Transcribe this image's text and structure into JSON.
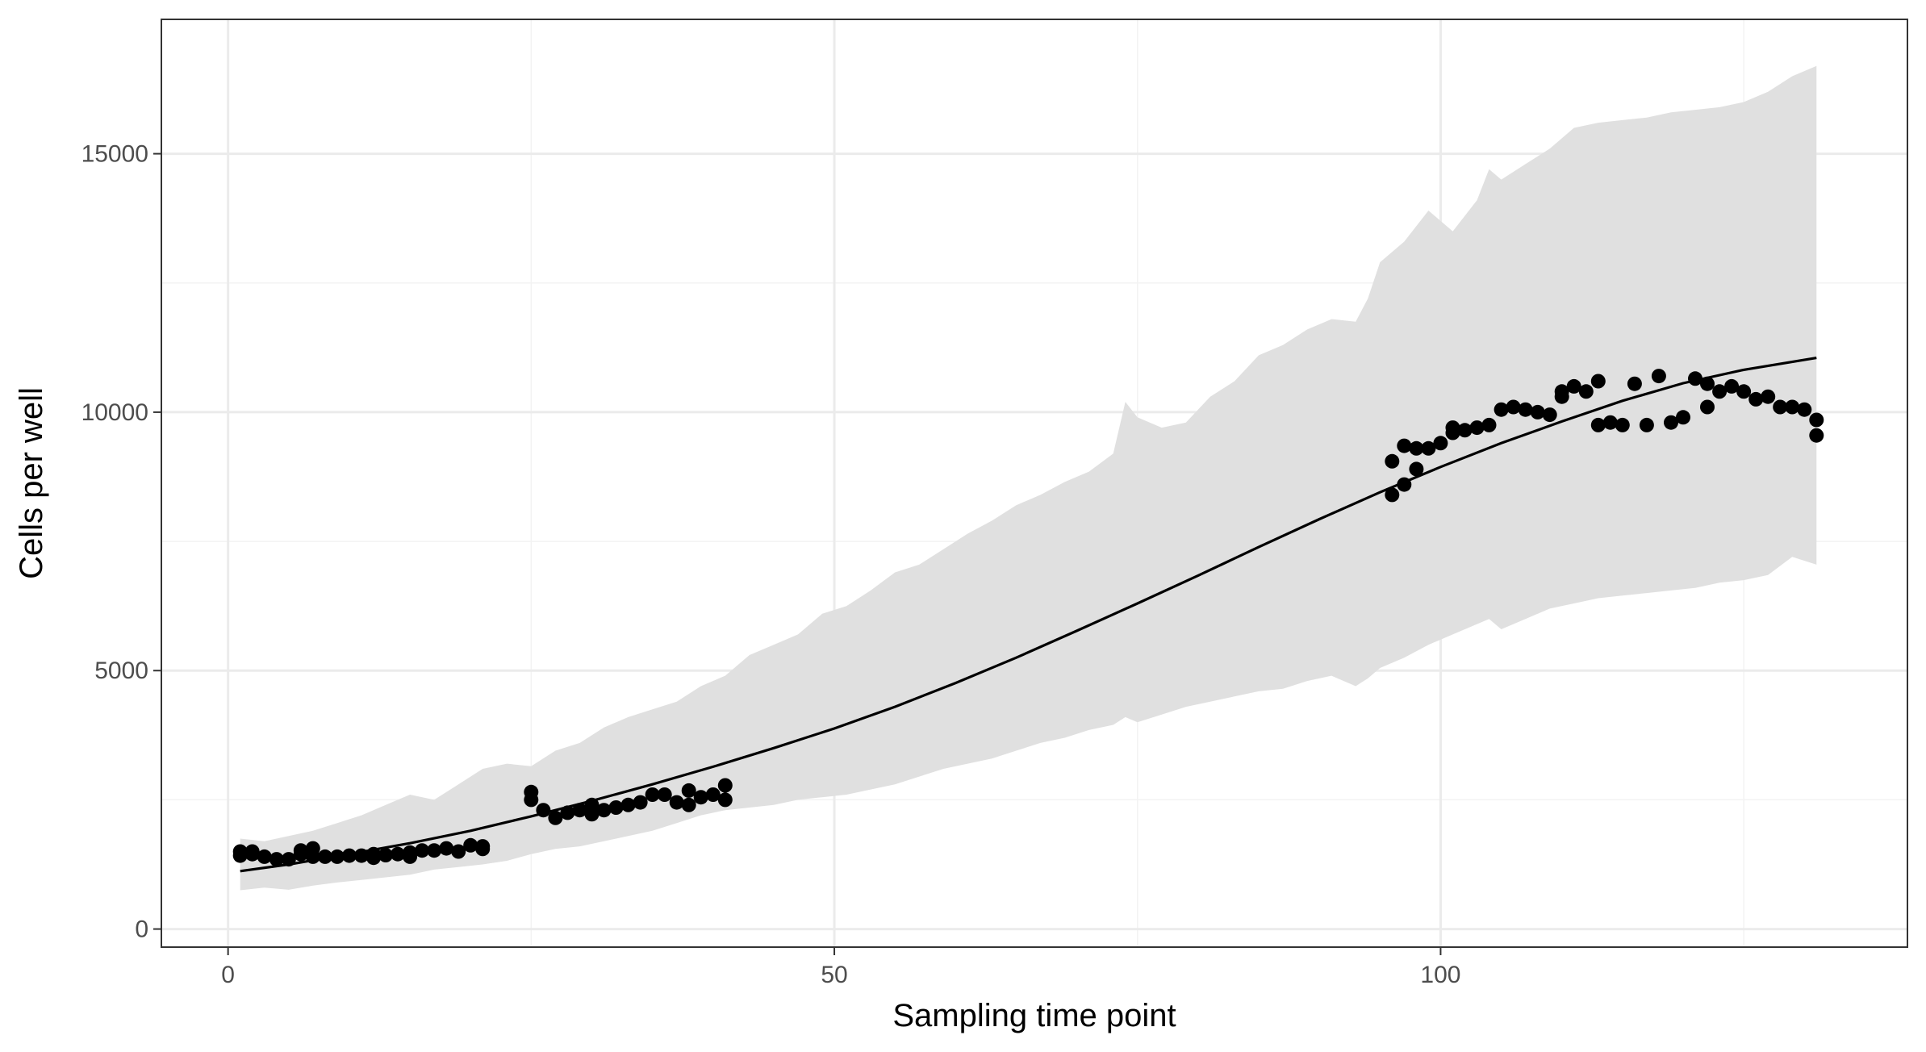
{
  "chart_data": {
    "type": "scatter",
    "title": "",
    "xlabel": "Sampling time point",
    "ylabel": "Cells per well",
    "xlim": [
      -5.5,
      138.5
    ],
    "ylim": [
      -350,
      17600
    ],
    "x_ticks": [
      0,
      50,
      100
    ],
    "x_tick_labels": [
      "0",
      "50",
      "100"
    ],
    "x_minor": [
      25,
      75,
      125
    ],
    "y_ticks": [
      0,
      5000,
      10000,
      15000
    ],
    "y_tick_labels": [
      "0",
      "5000",
      "10000",
      "15000"
    ],
    "y_minor": [
      2500,
      7500,
      12500
    ],
    "grid": true,
    "legend": "none",
    "colors": {
      "points": "#000000",
      "fit_line": "#000000",
      "band": "#e0e0e0",
      "panel_border": "#333333",
      "grid_major": "#ebebeb",
      "grid_minor": "#f3f3f3"
    },
    "series": [
      {
        "kind": "ribbon",
        "x": [
          1,
          3,
          5,
          7,
          9,
          11,
          13,
          15,
          17,
          19,
          21,
          23,
          25,
          27,
          29,
          31,
          33,
          35,
          37,
          39,
          41,
          43,
          45,
          47,
          49,
          51,
          53,
          55,
          57,
          59,
          61,
          63,
          65,
          67,
          69,
          71,
          73,
          74,
          75,
          77,
          79,
          81,
          83,
          85,
          87,
          89,
          91,
          93,
          94,
          95,
          97,
          99,
          101,
          103,
          104,
          105,
          107,
          109,
          111,
          113,
          115,
          117,
          119,
          121,
          123,
          125,
          127,
          129,
          131
        ],
        "upper": [
          1750,
          1700,
          1800,
          1900,
          2050,
          2200,
          2400,
          2600,
          2500,
          2800,
          3100,
          3200,
          3150,
          3450,
          3600,
          3900,
          4100,
          4250,
          4400,
          4700,
          4900,
          5300,
          5500,
          5700,
          6100,
          6250,
          6550,
          6900,
          7050,
          7350,
          7650,
          7900,
          8200,
          8400,
          8650,
          8850,
          9200,
          10200,
          9900,
          9700,
          9800,
          10300,
          10600,
          11100,
          11300,
          11600,
          11800,
          11750,
          12200,
          12900,
          13300,
          13900,
          13500,
          14100,
          14700,
          14500,
          14800,
          15100,
          15500,
          15600,
          15650,
          15700,
          15800,
          15850,
          15900,
          16000,
          16200,
          16500,
          16700
        ],
        "lower": [
          750,
          800,
          760,
          840,
          900,
          950,
          1000,
          1050,
          1150,
          1200,
          1250,
          1320,
          1450,
          1550,
          1600,
          1700,
          1800,
          1900,
          2050,
          2200,
          2300,
          2350,
          2400,
          2500,
          2550,
          2600,
          2700,
          2800,
          2950,
          3100,
          3200,
          3300,
          3450,
          3600,
          3700,
          3850,
          3950,
          4100,
          4000,
          4150,
          4300,
          4400,
          4500,
          4600,
          4650,
          4800,
          4900,
          4700,
          4850,
          5050,
          5250,
          5500,
          5700,
          5900,
          6000,
          5800,
          6000,
          6200,
          6300,
          6400,
          6450,
          6500,
          6550,
          6600,
          6700,
          6750,
          6850,
          7200,
          7050
        ]
      },
      {
        "kind": "line",
        "x": [
          1,
          5,
          10,
          15,
          20,
          25,
          30,
          35,
          40,
          45,
          50,
          55,
          60,
          65,
          70,
          75,
          80,
          85,
          90,
          95,
          100,
          105,
          110,
          115,
          120,
          125,
          131
        ],
        "y": [
          1120,
          1250,
          1450,
          1660,
          1900,
          2180,
          2480,
          2800,
          3140,
          3500,
          3880,
          4300,
          4760,
          5250,
          5770,
          6300,
          6840,
          7390,
          7930,
          8450,
          8940,
          9400,
          9820,
          10220,
          10560,
          10820,
          11050
        ]
      },
      {
        "kind": "points",
        "x": [
          1,
          1,
          2,
          2,
          3,
          4,
          5,
          6,
          6,
          7,
          7,
          8,
          9,
          10,
          11,
          12,
          12,
          13,
          14,
          15,
          15,
          16,
          17,
          18,
          19,
          20,
          21,
          21,
          25,
          25,
          26,
          27,
          28,
          29,
          30,
          30,
          31,
          32,
          33,
          34,
          35,
          36,
          37,
          38,
          38,
          39,
          40,
          41,
          41,
          96,
          96,
          97,
          97,
          98,
          98,
          99,
          100,
          101,
          101,
          102,
          103,
          104,
          105,
          106,
          107,
          108,
          109,
          110,
          110,
          111,
          112,
          113,
          113,
          114,
          115,
          116,
          117,
          118,
          119,
          120,
          121,
          122,
          122,
          123,
          124,
          125,
          126,
          127,
          128,
          129,
          130,
          131,
          131
        ],
        "y": [
          1420,
          1500,
          1450,
          1500,
          1400,
          1350,
          1350,
          1450,
          1520,
          1400,
          1560,
          1400,
          1400,
          1420,
          1420,
          1380,
          1450,
          1430,
          1450,
          1400,
          1480,
          1520,
          1520,
          1560,
          1500,
          1620,
          1550,
          1600,
          2500,
          2650,
          2300,
          2150,
          2250,
          2300,
          2220,
          2400,
          2300,
          2350,
          2400,
          2450,
          2600,
          2600,
          2450,
          2400,
          2680,
          2550,
          2600,
          2500,
          2780,
          8400,
          9050,
          8600,
          9350,
          8900,
          9300,
          9300,
          9400,
          9600,
          9700,
          9650,
          9700,
          9750,
          10050,
          10100,
          10050,
          10000,
          9950,
          10300,
          10400,
          10500,
          10400,
          9750,
          10600,
          9800,
          9750,
          10550,
          9750,
          10700,
          9800,
          9900,
          10650,
          10100,
          10550,
          10400,
          10500,
          10400,
          10250,
          10300,
          10100,
          10100,
          10050,
          9550,
          9850
        ]
      }
    ]
  }
}
